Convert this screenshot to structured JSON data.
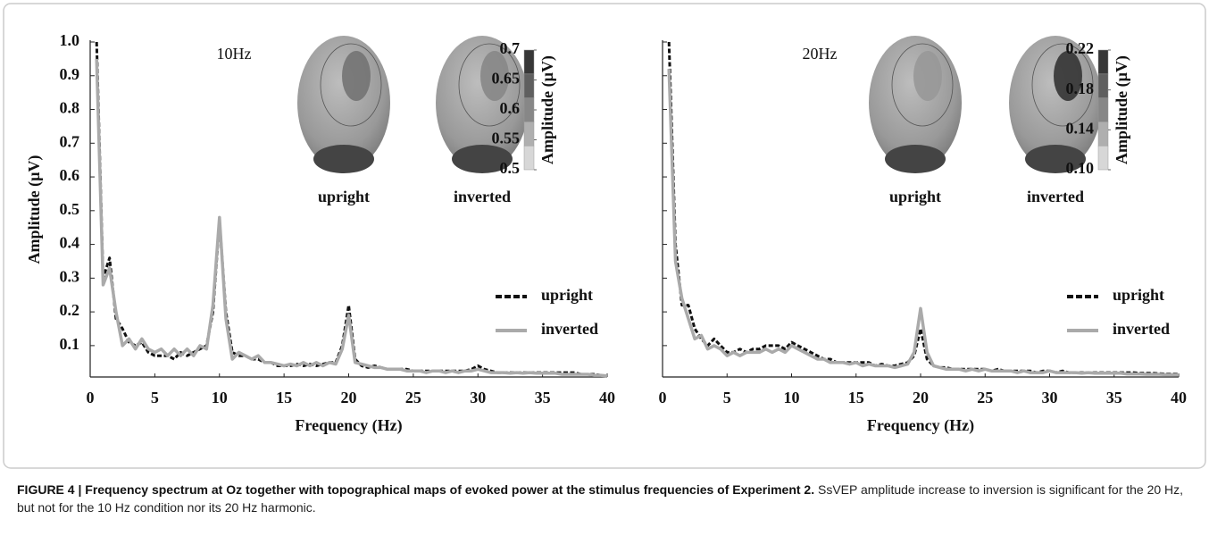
{
  "chart_data": [
    {
      "type": "line",
      "annotation": "10Hz",
      "xlabel": "Frequency (Hz)",
      "ylabel": "Amplitude (µV)",
      "xlim": [
        0,
        40
      ],
      "xticks": [
        0,
        5,
        10,
        15,
        20,
        25,
        30,
        35,
        40
      ],
      "ylim": [
        0.007,
        1.0
      ],
      "yticks": [
        0.1,
        0.2,
        0.3,
        0.4,
        0.5,
        0.6,
        0.7,
        0.8,
        0.9,
        {
          "value": 1.0,
          "label": "1.0"
        }
      ],
      "legend": "right",
      "x": [
        0.5,
        1,
        1.5,
        2,
        2.5,
        3,
        3.5,
        4,
        4.5,
        5,
        5.5,
        6,
        6.5,
        7,
        7.5,
        8,
        8.5,
        9,
        9.5,
        10,
        10.5,
        11,
        11.5,
        12,
        12.5,
        13,
        13.5,
        14,
        14.5,
        15,
        15.5,
        16,
        16.5,
        17,
        17.5,
        18,
        18.5,
        19,
        19.5,
        20,
        20.5,
        21,
        21.5,
        22,
        22.5,
        23,
        23.5,
        24,
        24.5,
        25,
        25.5,
        26,
        26.5,
        27,
        27.5,
        28,
        28.5,
        29,
        29.5,
        30,
        30.5,
        31,
        31.5,
        32,
        32.5,
        33,
        33.5,
        34,
        34.5,
        35,
        35.5,
        36,
        36.5,
        37,
        37.5,
        38,
        38.5,
        39,
        39.5,
        40
      ],
      "series": [
        {
          "name": "upright",
          "color": "#111111",
          "dash": true,
          "values": [
            1.0,
            0.3,
            0.36,
            0.18,
            0.15,
            0.11,
            0.1,
            0.11,
            0.08,
            0.07,
            0.07,
            0.07,
            0.06,
            0.08,
            0.07,
            0.08,
            0.09,
            0.1,
            0.2,
            0.47,
            0.2,
            0.08,
            0.07,
            0.07,
            0.06,
            0.06,
            0.05,
            0.05,
            0.04,
            0.04,
            0.04,
            0.045,
            0.04,
            0.045,
            0.04,
            0.045,
            0.05,
            0.05,
            0.1,
            0.22,
            0.06,
            0.04,
            0.035,
            0.04,
            0.035,
            0.03,
            0.03,
            0.03,
            0.03,
            0.025,
            0.025,
            0.025,
            0.025,
            0.025,
            0.025,
            0.025,
            0.025,
            0.025,
            0.03,
            0.04,
            0.03,
            0.025,
            0.02,
            0.02,
            0.02,
            0.02,
            0.02,
            0.02,
            0.02,
            0.02,
            0.02,
            0.02,
            0.02,
            0.02,
            0.02,
            0.015,
            0.015,
            0.015,
            0.012,
            0.01
          ]
        },
        {
          "name": "inverted",
          "color": "#aaaaaa",
          "dash": false,
          "values": [
            0.95,
            0.28,
            0.33,
            0.2,
            0.1,
            0.12,
            0.09,
            0.12,
            0.09,
            0.08,
            0.09,
            0.07,
            0.09,
            0.07,
            0.09,
            0.07,
            0.1,
            0.09,
            0.22,
            0.48,
            0.18,
            0.06,
            0.08,
            0.07,
            0.06,
            0.07,
            0.05,
            0.05,
            0.045,
            0.04,
            0.045,
            0.04,
            0.05,
            0.04,
            0.05,
            0.04,
            0.05,
            0.045,
            0.09,
            0.19,
            0.05,
            0.045,
            0.04,
            0.035,
            0.035,
            0.03,
            0.03,
            0.03,
            0.025,
            0.025,
            0.025,
            0.02,
            0.025,
            0.025,
            0.02,
            0.025,
            0.02,
            0.025,
            0.025,
            0.03,
            0.025,
            0.02,
            0.02,
            0.02,
            0.018,
            0.02,
            0.018,
            0.02,
            0.018,
            0.018,
            0.018,
            0.018,
            0.015,
            0.015,
            0.015,
            0.015,
            0.015,
            0.012,
            0.012,
            0.01
          ]
        }
      ],
      "maps": [
        {
          "label": "upright",
          "peak": 0.62
        },
        {
          "label": "inverted",
          "peak": 0.6
        }
      ],
      "colorbar": {
        "label": "Amplitude (µV)",
        "clim": [
          0.5,
          0.7
        ],
        "ticks": [
          0.7,
          0.65,
          0.6,
          0.55,
          0.5
        ]
      }
    },
    {
      "type": "line",
      "annotation": "20Hz",
      "xlabel": "Frequency (Hz)",
      "xlim": [
        0,
        40
      ],
      "xticks": [
        0,
        5,
        10,
        15,
        20,
        25,
        30,
        35,
        40
      ],
      "ylim": [
        0.007,
        1.0
      ],
      "yticks": [
        0.1,
        0.2,
        0.3,
        0.4,
        0.5,
        0.6,
        0.7,
        0.8,
        0.9,
        1.0
      ],
      "ytick_labels": false,
      "legend": "right",
      "x": [
        0.5,
        1,
        1.5,
        2,
        2.5,
        3,
        3.5,
        4,
        4.5,
        5,
        5.5,
        6,
        6.5,
        7,
        7.5,
        8,
        8.5,
        9,
        9.5,
        10,
        10.5,
        11,
        11.5,
        12,
        12.5,
        13,
        13.5,
        14,
        14.5,
        15,
        15.5,
        16,
        16.5,
        17,
        17.5,
        18,
        18.5,
        19,
        19.5,
        20,
        20.5,
        21,
        21.5,
        22,
        22.5,
        23,
        23.5,
        24,
        24.5,
        25,
        25.5,
        26,
        26.5,
        27,
        27.5,
        28,
        28.5,
        29,
        29.5,
        30,
        30.5,
        31,
        31.5,
        32,
        32.5,
        33,
        33.5,
        34,
        34.5,
        35,
        35.5,
        36,
        36.5,
        37,
        37.5,
        38,
        38.5,
        39,
        39.5,
        40
      ],
      "series": [
        {
          "name": "upright",
          "color": "#111111",
          "dash": true,
          "values": [
            1.0,
            0.4,
            0.22,
            0.22,
            0.15,
            0.12,
            0.1,
            0.12,
            0.1,
            0.08,
            0.08,
            0.09,
            0.08,
            0.09,
            0.09,
            0.1,
            0.1,
            0.1,
            0.09,
            0.11,
            0.1,
            0.09,
            0.08,
            0.07,
            0.06,
            0.06,
            0.05,
            0.05,
            0.05,
            0.05,
            0.05,
            0.05,
            0.04,
            0.045,
            0.04,
            0.04,
            0.045,
            0.05,
            0.07,
            0.15,
            0.06,
            0.04,
            0.035,
            0.035,
            0.03,
            0.03,
            0.03,
            0.03,
            0.03,
            0.03,
            0.025,
            0.03,
            0.025,
            0.025,
            0.025,
            0.025,
            0.025,
            0.02,
            0.025,
            0.025,
            0.02,
            0.025,
            0.02,
            0.02,
            0.02,
            0.02,
            0.02,
            0.02,
            0.02,
            0.02,
            0.02,
            0.02,
            0.02,
            0.018,
            0.018,
            0.018,
            0.017,
            0.016,
            0.016,
            0.015
          ]
        },
        {
          "name": "inverted",
          "color": "#aaaaaa",
          "dash": false,
          "values": [
            0.92,
            0.35,
            0.24,
            0.18,
            0.12,
            0.13,
            0.09,
            0.1,
            0.09,
            0.07,
            0.08,
            0.07,
            0.08,
            0.08,
            0.08,
            0.09,
            0.08,
            0.09,
            0.08,
            0.1,
            0.09,
            0.08,
            0.07,
            0.06,
            0.06,
            0.05,
            0.05,
            0.05,
            0.045,
            0.05,
            0.04,
            0.045,
            0.04,
            0.04,
            0.04,
            0.035,
            0.04,
            0.045,
            0.08,
            0.21,
            0.08,
            0.04,
            0.035,
            0.03,
            0.03,
            0.03,
            0.025,
            0.03,
            0.025,
            0.03,
            0.025,
            0.025,
            0.025,
            0.025,
            0.02,
            0.025,
            0.02,
            0.02,
            0.02,
            0.025,
            0.02,
            0.02,
            0.02,
            0.02,
            0.018,
            0.02,
            0.018,
            0.018,
            0.018,
            0.018,
            0.018,
            0.016,
            0.016,
            0.016,
            0.015,
            0.015,
            0.015,
            0.014,
            0.014,
            0.013
          ]
        }
      ],
      "maps": [
        {
          "label": "upright",
          "peak": 0.15
        },
        {
          "label": "inverted",
          "peak": 0.21
        }
      ],
      "colorbar": {
        "label": "Amplitude (µV)",
        "clim": [
          {
            "value": 0.1,
            "label": "0.10"
          },
          0.22
        ],
        "ticks": [
          0.22,
          0.18,
          0.14,
          {
            "value": 0.1,
            "label": "0.10"
          }
        ]
      }
    }
  ],
  "caption": {
    "label": "FIGURE 4 | Frequency spectrum at Oz together with topographical maps of evoked power at the stimulus frequencies of Experiment 2.",
    "text": "SsVEP amplitude increase to inversion is significant for the 20 Hz, but not for the 10 Hz condition nor its 20 Hz harmonic."
  }
}
